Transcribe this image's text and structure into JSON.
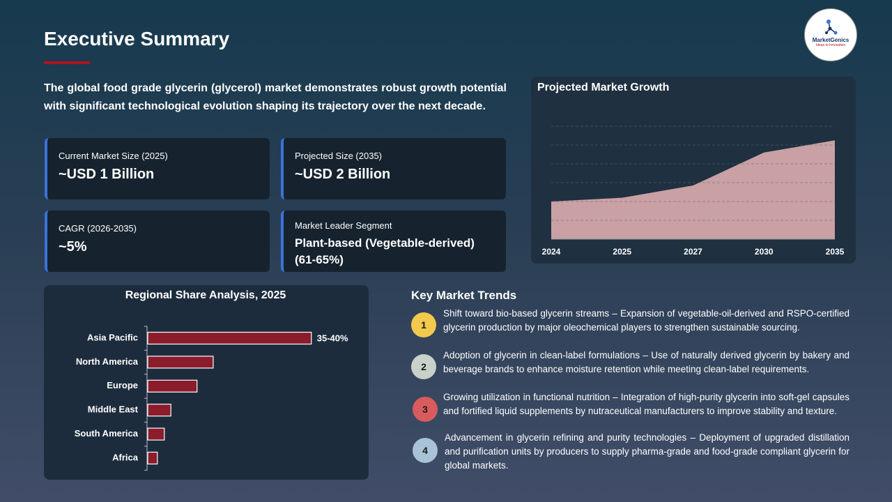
{
  "header": {
    "title": "Executive Summary",
    "logo": {
      "name": "MarketGenics",
      "tagline": "Ideas to Innovation"
    }
  },
  "intro": "The global food grade glycerin (glycerol) market demonstrates robust growth potential with significant technological evolution shaping its trajectory over the next decade.",
  "stats": [
    {
      "label": "Current Market Size (2025)",
      "value": "~USD 1 Billion"
    },
    {
      "label": "Projected Size (2035)",
      "value": "~USD 2 Billion"
    },
    {
      "label": "CAGR (2026-2035)",
      "value": "~5%"
    },
    {
      "label": "Market Leader Segment",
      "value": "Plant-based (Vegetable-derived) (61-65%)"
    }
  ],
  "chart_data": [
    {
      "type": "area",
      "title": "Projected Market Growth",
      "categories": [
        "2024",
        "2025",
        "2027",
        "2030",
        "2035"
      ],
      "values": [
        2,
        2.2,
        2.85,
        4.6,
        5.25
      ],
      "color": "#c9a0a4",
      "ylim": [
        0,
        6
      ],
      "yticks": [
        1,
        2,
        3,
        4,
        5,
        6
      ],
      "grid": true
    },
    {
      "type": "hbar",
      "title": "Regional Share Analysis, 2025",
      "categories": [
        "Asia Pacific",
        "North America",
        "Europe",
        "Middle East",
        "South America",
        "Africa"
      ],
      "values": [
        37.5,
        15,
        11.3,
        5.3,
        3.8,
        2.2
      ],
      "value_labels": [
        "35-40%",
        null,
        null,
        null,
        null,
        null
      ],
      "color": "#8a1c2b",
      "xlim": [
        0,
        50
      ]
    }
  ],
  "trends": {
    "title": "Key Market Trends",
    "items": [
      {
        "number": "1",
        "text": "Shift toward bio-based glycerin streams – Expansion of vegetable-oil-derived and RSPO-certified glycerin production by major oleochemical players to strengthen sustainable sourcing."
      },
      {
        "number": "2",
        "text": "Adoption of glycerin in clean-label formulations – Use of naturally derived glycerin by bakery and beverage brands to enhance moisture retention while meeting clean-label requirements."
      },
      {
        "number": "3",
        "text": "Growing utilization in functional nutrition – Integration of high-purity glycerin into soft-gel capsules and fortified liquid supplements by nutraceutical manufacturers to improve stability and texture."
      },
      {
        "number": "4",
        "text": "Advancement in glycerin refining and purity technologies – Deployment of upgraded distillation and purification units by producers to supply pharma-grade and food-grade compliant glycerin for global markets."
      }
    ]
  }
}
